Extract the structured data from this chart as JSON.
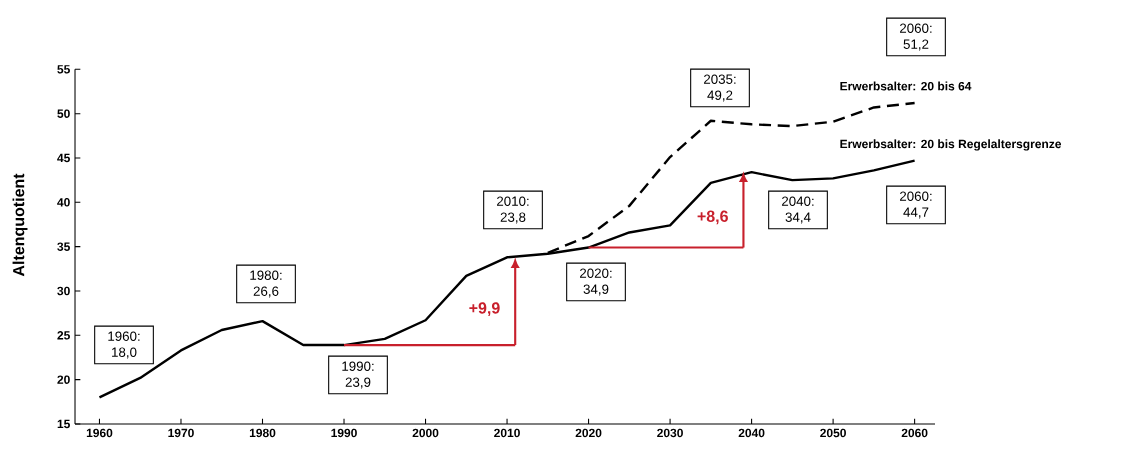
{
  "chart_data": {
    "type": "line",
    "ylabel": "Altenquotient",
    "x": [
      1960,
      1965,
      1970,
      1975,
      1980,
      1985,
      1990,
      1995,
      2000,
      2005,
      2010,
      2015,
      2020,
      2025,
      2030,
      2035,
      2040,
      2045,
      2050,
      2055,
      2060
    ],
    "series": [
      {
        "name": "Erwerbsalter: 20 bis 64",
        "color": "#000000",
        "line_style": "dashed",
        "x": [
          2015,
          2020,
          2025,
          2030,
          2035,
          2040,
          2045,
          2050,
          2055,
          2060
        ],
        "values": [
          34.3,
          36.2,
          39.6,
          45.1,
          49.2,
          48.8,
          48.6,
          49.1,
          50.7,
          51.2
        ]
      },
      {
        "name": "Erwerbsalter: 20 bis Regelaltersgrenze",
        "color": "#000000",
        "line_style": "solid",
        "values": [
          18.0,
          20.2,
          23.3,
          25.6,
          26.6,
          23.9,
          23.9,
          24.6,
          26.7,
          31.7,
          33.8,
          34.2,
          34.9,
          36.6,
          37.4,
          42.2,
          43.4,
          42.5,
          42.7,
          43.6,
          44.7
        ]
      },
      {
        "color": "#c8202c",
        "line_style": "solid",
        "x": [
          1990,
          2011
        ],
        "values": [
          23.9,
          23.9
        ]
      },
      {
        "color": "#c8202c",
        "line_style": "solid",
        "x": [
          2020,
          2039
        ],
        "values": [
          34.9,
          34.9
        ]
      }
    ],
    "annotations": [
      "1960: 18,0",
      "1980: 26,6",
      "1990: 23,9",
      "2010: 23,8",
      "2020: 34,9",
      "2035: 49,2",
      "2040: 34,4",
      "2060: 44,7",
      "2060: 51,2",
      {
        "text": "+9,9",
        "x": 2011,
        "y": 33.8
      },
      {
        "text": "+8,6",
        "x": 2039,
        "y": 43.5
      }
    ],
    "xlim": [
      1957,
      2062.5
    ],
    "ylim": [
      15,
      55
    ],
    "xticks": [
      1960,
      1970,
      1980,
      1990,
      2000,
      2010,
      2020,
      2030,
      2040,
      2050,
      2060
    ],
    "yticks": [
      15,
      20,
      25,
      30,
      35,
      40,
      45,
      50,
      55
    ],
    "grid": false
  }
}
